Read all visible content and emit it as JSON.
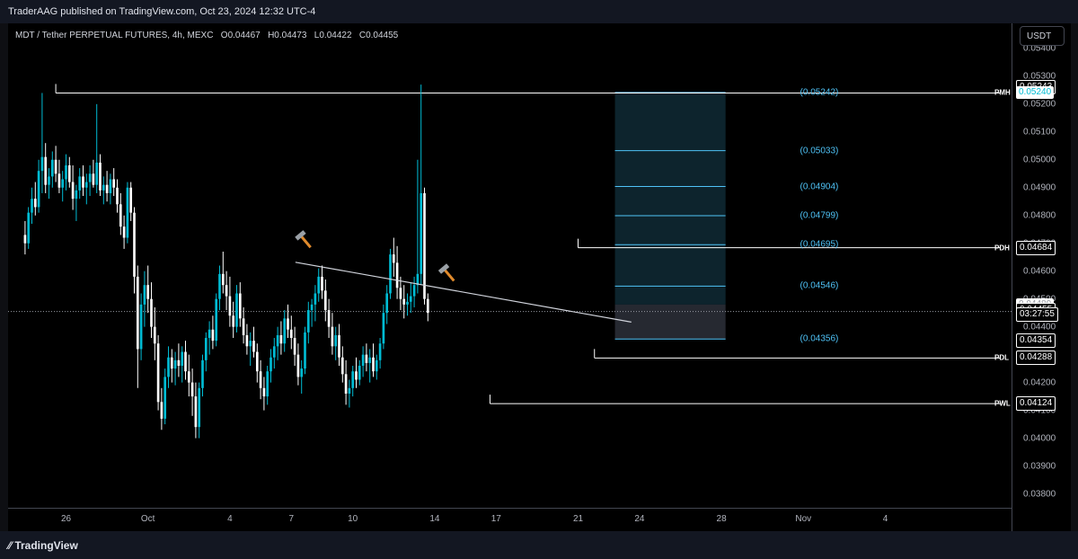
{
  "header": {
    "publish_text": "TraderAAG published on TradingView.com, Oct 23, 2024 12:32 UTC-4"
  },
  "symbol": {
    "name": "MDT / Tether PERPETUAL FUTURES, 4h, MEXC",
    "o_label": "O",
    "o": "0.04467",
    "h_label": "H",
    "h": "0.04473",
    "l_label": "L",
    "l": "0.04422",
    "c_label": "C",
    "c": "0.04455"
  },
  "currency_button": "USDT",
  "footer": {
    "logo_text": "TradingView"
  },
  "colors": {
    "bull": "#00bcd4",
    "bear": "#ffffff",
    "fib": "#4fc3f7",
    "zone": "#0f2a35",
    "lines": "#ffffff"
  },
  "chart_data": {
    "type": "candlestick",
    "timeframe": "4h",
    "ylim": [
      0.0375,
      0.0549
    ],
    "y_ticks": [
      "0.05400",
      "0.05300",
      "0.05200",
      "0.05100",
      "0.05000",
      "0.04900",
      "0.04800",
      "0.04700",
      "0.04600",
      "0.04500",
      "0.04400",
      "0.04300",
      "0.04200",
      "0.04100",
      "0.04000",
      "0.03900",
      "0.03800"
    ],
    "x_ticks": [
      "26",
      "Oct",
      "4",
      "7",
      "10",
      "14",
      "17",
      "21",
      "24",
      "28",
      "Nov",
      "4"
    ],
    "x_days": [
      26,
      30,
      34,
      37,
      40,
      44,
      47,
      51,
      54,
      58,
      62,
      66
    ],
    "start_day": 24,
    "candles": [
      [
        0.0473,
        0.0478,
        0.0466,
        0.047
      ],
      [
        0.047,
        0.0483,
        0.0468,
        0.0481
      ],
      [
        0.0481,
        0.049,
        0.0477,
        0.0486
      ],
      [
        0.0486,
        0.0492,
        0.048,
        0.0483
      ],
      [
        0.0483,
        0.05,
        0.0481,
        0.0496
      ],
      [
        0.0496,
        0.0524,
        0.0488,
        0.0501
      ],
      [
        0.0501,
        0.0506,
        0.0488,
        0.0491
      ],
      [
        0.0491,
        0.0497,
        0.0486,
        0.0494
      ],
      [
        0.0494,
        0.0503,
        0.049,
        0.05
      ],
      [
        0.05,
        0.0505,
        0.0492,
        0.0495
      ],
      [
        0.0495,
        0.05,
        0.0488,
        0.049
      ],
      [
        0.049,
        0.0496,
        0.0485,
        0.0493
      ],
      [
        0.0493,
        0.0502,
        0.0489,
        0.0498
      ],
      [
        0.0498,
        0.0501,
        0.049,
        0.0492
      ],
      [
        0.0492,
        0.0498,
        0.0482,
        0.0486
      ],
      [
        0.0486,
        0.0491,
        0.0478,
        0.0489
      ],
      [
        0.0489,
        0.0497,
        0.0486,
        0.0494
      ],
      [
        0.0494,
        0.0498,
        0.0487,
        0.049
      ],
      [
        0.049,
        0.0495,
        0.0484,
        0.0492
      ],
      [
        0.0492,
        0.0498,
        0.0487,
        0.0495
      ],
      [
        0.0495,
        0.05,
        0.049,
        0.0491
      ],
      [
        0.0491,
        0.052,
        0.0488,
        0.0499
      ],
      [
        0.0499,
        0.0502,
        0.0487,
        0.0489
      ],
      [
        0.0489,
        0.0494,
        0.0484,
        0.0491
      ],
      [
        0.0491,
        0.0496,
        0.0485,
        0.0488
      ],
      [
        0.0488,
        0.0495,
        0.0484,
        0.0493
      ],
      [
        0.0493,
        0.0497,
        0.0487,
        0.049
      ],
      [
        0.049,
        0.0493,
        0.0481,
        0.0484
      ],
      [
        0.0484,
        0.0488,
        0.0473,
        0.0476
      ],
      [
        0.0476,
        0.048,
        0.0468,
        0.0472
      ],
      [
        0.0472,
        0.0492,
        0.047,
        0.049
      ],
      [
        0.049,
        0.0492,
        0.0478,
        0.0481
      ],
      [
        0.0481,
        0.0483,
        0.0452,
        0.0458
      ],
      [
        0.0458,
        0.0462,
        0.0418,
        0.0432
      ],
      [
        0.0432,
        0.0452,
        0.0428,
        0.0448
      ],
      [
        0.0448,
        0.046,
        0.044,
        0.0455
      ],
      [
        0.0455,
        0.0462,
        0.0445,
        0.045
      ],
      [
        0.045,
        0.0456,
        0.0436,
        0.044
      ],
      [
        0.044,
        0.0447,
        0.0428,
        0.0434
      ],
      [
        0.0434,
        0.0437,
        0.041,
        0.0413
      ],
      [
        0.0413,
        0.0418,
        0.0403,
        0.0407
      ],
      [
        0.0407,
        0.0425,
        0.0405,
        0.0422
      ],
      [
        0.0422,
        0.0433,
        0.0418,
        0.0429
      ],
      [
        0.0429,
        0.0432,
        0.042,
        0.0425
      ],
      [
        0.0425,
        0.0431,
        0.0419,
        0.0428
      ],
      [
        0.0428,
        0.0434,
        0.0422,
        0.0426
      ],
      [
        0.0426,
        0.0433,
        0.042,
        0.0431
      ],
      [
        0.0431,
        0.0435,
        0.0421,
        0.0424
      ],
      [
        0.0424,
        0.043,
        0.0415,
        0.042
      ],
      [
        0.042,
        0.0425,
        0.0408,
        0.0415
      ],
      [
        0.0415,
        0.042,
        0.04,
        0.0404
      ],
      [
        0.0404,
        0.042,
        0.04,
        0.0418
      ],
      [
        0.0418,
        0.043,
        0.0415,
        0.0428
      ],
      [
        0.0428,
        0.0438,
        0.0424,
        0.0436
      ],
      [
        0.0436,
        0.0442,
        0.043,
        0.0439
      ],
      [
        0.0439,
        0.0444,
        0.0432,
        0.0435
      ],
      [
        0.0435,
        0.0452,
        0.0433,
        0.045
      ],
      [
        0.045,
        0.0462,
        0.0446,
        0.0459
      ],
      [
        0.0459,
        0.0467,
        0.0452,
        0.0455
      ],
      [
        0.0455,
        0.046,
        0.0446,
        0.0451
      ],
      [
        0.0451,
        0.0458,
        0.044,
        0.0444
      ],
      [
        0.0444,
        0.0449,
        0.0436,
        0.044
      ],
      [
        0.044,
        0.0455,
        0.0438,
        0.0452
      ],
      [
        0.0452,
        0.0456,
        0.044,
        0.0443
      ],
      [
        0.0443,
        0.0447,
        0.0434,
        0.0437
      ],
      [
        0.0437,
        0.0441,
        0.043,
        0.0433
      ],
      [
        0.0433,
        0.0438,
        0.0426,
        0.0435
      ],
      [
        0.0435,
        0.044,
        0.0429,
        0.0431
      ],
      [
        0.0431,
        0.0434,
        0.042,
        0.0424
      ],
      [
        0.0424,
        0.0428,
        0.0414,
        0.0418
      ],
      [
        0.0418,
        0.0422,
        0.041,
        0.0415
      ],
      [
        0.0415,
        0.0426,
        0.0412,
        0.0424
      ],
      [
        0.0424,
        0.0432,
        0.042,
        0.0429
      ],
      [
        0.0429,
        0.0436,
        0.0425,
        0.0433
      ],
      [
        0.0433,
        0.044,
        0.0428,
        0.0437
      ],
      [
        0.0437,
        0.0442,
        0.043,
        0.0434
      ],
      [
        0.0434,
        0.0446,
        0.0431,
        0.0443
      ],
      [
        0.0443,
        0.0448,
        0.0436,
        0.0439
      ],
      [
        0.0439,
        0.0444,
        0.0432,
        0.0436
      ],
      [
        0.0436,
        0.044,
        0.0426,
        0.043
      ],
      [
        0.043,
        0.0434,
        0.0419,
        0.0422
      ],
      [
        0.0422,
        0.0428,
        0.0416,
        0.0425
      ],
      [
        0.0425,
        0.044,
        0.0423,
        0.0438
      ],
      [
        0.0438,
        0.0449,
        0.0434,
        0.0446
      ],
      [
        0.0446,
        0.045,
        0.044,
        0.0448
      ],
      [
        0.0448,
        0.0455,
        0.0442,
        0.0452
      ],
      [
        0.0452,
        0.0461,
        0.0449,
        0.0458
      ],
      [
        0.0458,
        0.0462,
        0.045,
        0.0453
      ],
      [
        0.0453,
        0.0457,
        0.0442,
        0.0446
      ],
      [
        0.0446,
        0.045,
        0.0436,
        0.044
      ],
      [
        0.044,
        0.0445,
        0.043,
        0.0433
      ],
      [
        0.0433,
        0.044,
        0.0428,
        0.0437
      ],
      [
        0.0437,
        0.0441,
        0.0426,
        0.0429
      ],
      [
        0.0429,
        0.0433,
        0.042,
        0.0423
      ],
      [
        0.0423,
        0.0428,
        0.0412,
        0.0416
      ],
      [
        0.0416,
        0.0421,
        0.0411,
        0.0418
      ],
      [
        0.0418,
        0.0426,
        0.0415,
        0.0424
      ],
      [
        0.0424,
        0.0429,
        0.0418,
        0.0421
      ],
      [
        0.0421,
        0.0428,
        0.0419,
        0.0426
      ],
      [
        0.0426,
        0.0433,
        0.0422,
        0.043
      ],
      [
        0.043,
        0.0434,
        0.0424,
        0.0427
      ],
      [
        0.0427,
        0.0432,
        0.042,
        0.0429
      ],
      [
        0.0429,
        0.0434,
        0.0422,
        0.0424
      ],
      [
        0.0424,
        0.043,
        0.0421,
        0.0428
      ],
      [
        0.0428,
        0.0436,
        0.0425,
        0.0434
      ],
      [
        0.0434,
        0.0448,
        0.0432,
        0.0445
      ],
      [
        0.0445,
        0.0455,
        0.0441,
        0.0452
      ],
      [
        0.0452,
        0.0468,
        0.045,
        0.0466
      ],
      [
        0.0466,
        0.0472,
        0.0458,
        0.0463
      ],
      [
        0.0463,
        0.0469,
        0.045,
        0.0454
      ],
      [
        0.0454,
        0.0458,
        0.0446,
        0.045
      ],
      [
        0.045,
        0.0455,
        0.0443,
        0.0448
      ],
      [
        0.0448,
        0.0452,
        0.0444,
        0.0449
      ],
      [
        0.0449,
        0.0456,
        0.0445,
        0.0451
      ],
      [
        0.0451,
        0.0458,
        0.0447,
        0.0455
      ],
      [
        0.0455,
        0.05,
        0.0452,
        0.0459
      ],
      [
        0.0459,
        0.0527,
        0.0455,
        0.0488
      ],
      [
        0.0488,
        0.049,
        0.0448,
        0.045
      ],
      [
        0.045,
        0.0452,
        0.0442,
        0.0445
      ]
    ],
    "trendlines": [
      {
        "label": "descending trendline",
        "from": [
          37.2,
          0.04632
        ],
        "to": [
          53.6,
          0.04417
        ]
      }
    ],
    "levels": [
      {
        "name": "PMH",
        "price": 0.0524,
        "start_day": 25.5
      },
      {
        "name": "PDH",
        "price": 0.04684,
        "start_day": 51
      },
      {
        "name": "PDL",
        "price": 0.04288,
        "start_day": 51.8
      },
      {
        "name": "PWL",
        "price": 0.04124,
        "start_day": 46.7
      }
    ],
    "fib_levels": [
      "(0.05242)",
      "(0.05033)",
      "(0.04904)",
      "(0.04799)",
      "(0.04695)",
      "(0.04546)",
      "(0.04356)"
    ],
    "fib_values": [
      0.05242,
      0.05033,
      0.04904,
      0.04799,
      0.04695,
      0.04546,
      0.04356
    ],
    "fib_range_days": [
      52.8,
      58.2
    ],
    "current_price_line": 0.04455,
    "axis_badges": {
      "pmh_high": "0.05243",
      "pmh": "0.05240",
      "pdh": "0.04684",
      "bid": "0.04480",
      "last": "0.04455",
      "countdown": "03:27:55",
      "fib_low": "0.04354",
      "pdl": "0.04288",
      "pwl": "0.04124"
    },
    "annotations": [
      "hammer-icon",
      "hammer-icon"
    ]
  }
}
